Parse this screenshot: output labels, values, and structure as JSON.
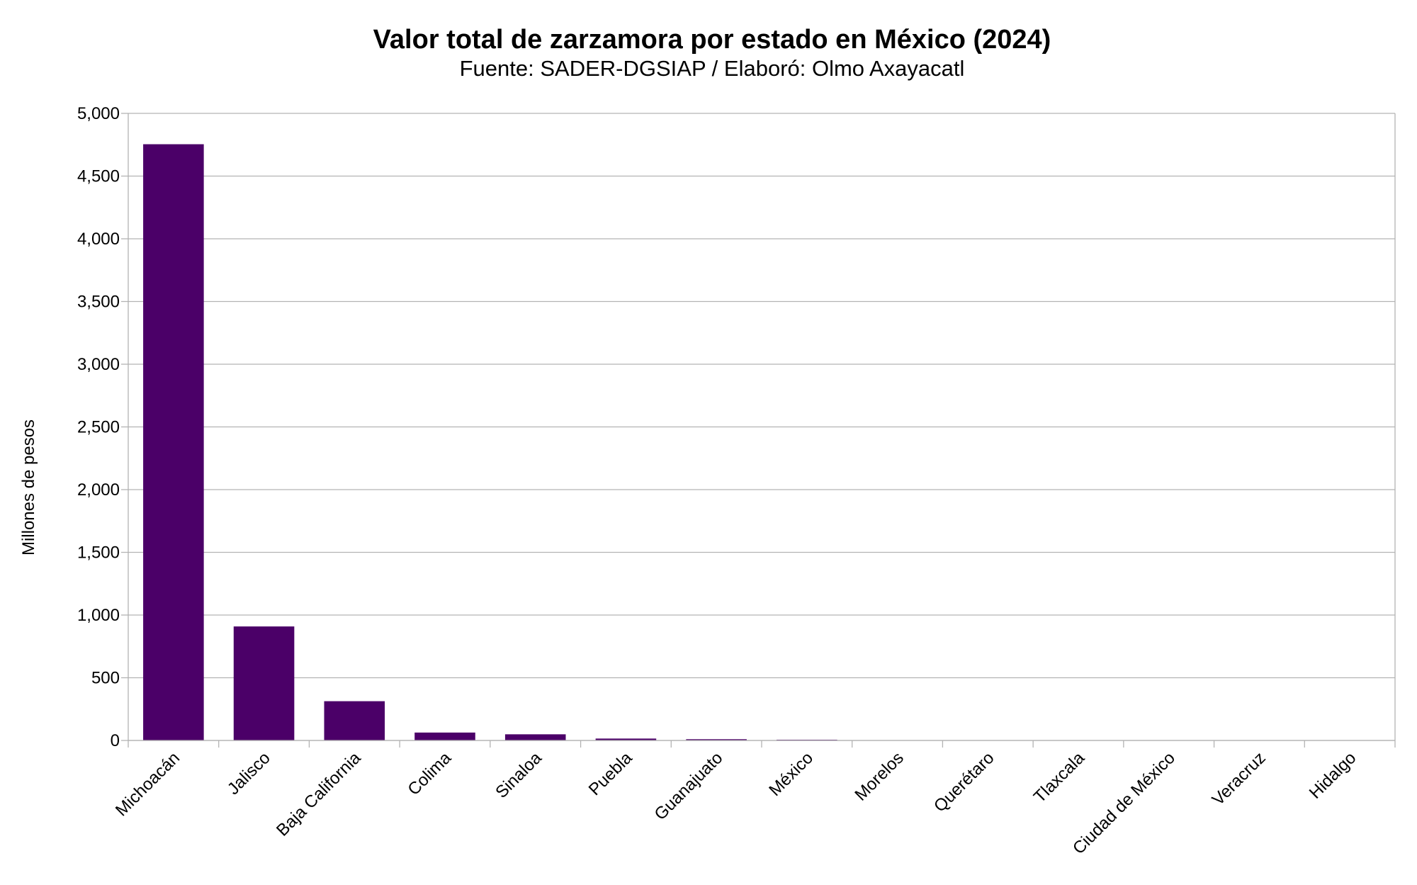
{
  "chart_data": {
    "type": "bar",
    "title": "Valor total de zarzamora por estado en México (2024)",
    "subtitle": "Fuente: SADER-DGSIAP / Elaboró: Olmo Axayacatl",
    "xlabel": "",
    "ylabel": "Millones de pesos",
    "ylim": [
      0,
      5000
    ],
    "yticks": [
      0,
      500,
      1000,
      1500,
      2000,
      2500,
      3000,
      3500,
      4000,
      4500,
      5000
    ],
    "ytick_labels": [
      "0",
      "500",
      "1,000",
      "1,500",
      "2,000",
      "2,500",
      "3,000",
      "3,500",
      "4,000",
      "4,500",
      "5,000"
    ],
    "grid": true,
    "bar_color": "#4b0068",
    "categories": [
      "Michoacán",
      "Jalisco",
      "Baja California",
      "Colima",
      "Sinaloa",
      "Puebla",
      "Guanajuato",
      "México",
      "Morelos",
      "Querétaro",
      "Tlaxcala",
      "Ciudad de México",
      "Veracruz",
      "Hidalgo"
    ],
    "values": [
      4754,
      909,
      313,
      63,
      49,
      15,
      10,
      6,
      0.5,
      0.3,
      0.2,
      0.1,
      0.1,
      0.1
    ]
  }
}
